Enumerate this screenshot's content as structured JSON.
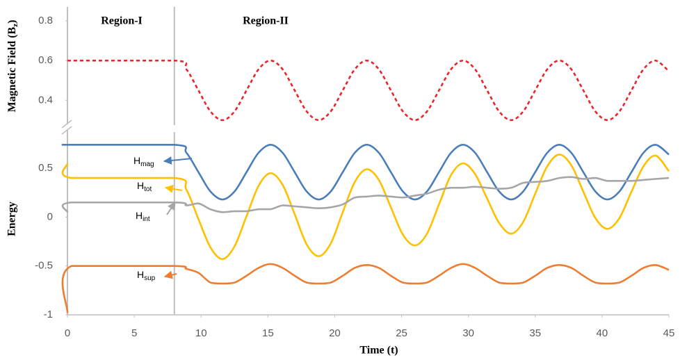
{
  "chart_data": [
    {
      "type": "line",
      "ylabel": [
        "Magnetic Field (B",
        "z",
        ")"
      ],
      "annotations": [
        "Region-I",
        "Region-II"
      ],
      "region_boundary": 8,
      "xlim": [
        0,
        45
      ],
      "ylim": [
        0.275,
        0.87
      ],
      "yticks": [
        0.4,
        0.6,
        0.8
      ],
      "x": [
        0,
        8,
        8.9,
        9.8,
        10.7,
        11.6,
        12.5,
        13.4,
        14.3,
        15.2,
        16.1,
        17,
        17.9,
        18.8,
        19.7,
        20.6,
        21.5,
        22.4,
        23.3,
        24.2,
        25.1,
        26,
        26.9,
        27.8,
        28.7,
        29.6,
        30.5,
        31.4,
        32.3,
        33.2,
        34.1,
        35,
        35.9,
        36.8,
        37.7,
        38.6,
        39.5,
        40.4,
        41.3,
        42.2,
        43.1,
        44,
        45
      ],
      "series": [
        {
          "color": "#e8262a",
          "dashed": true,
          "values": [
            0.6,
            0.6,
            0.556,
            0.45,
            0.344,
            0.3,
            0.344,
            0.45,
            0.556,
            0.6,
            0.556,
            0.45,
            0.344,
            0.3,
            0.344,
            0.45,
            0.556,
            0.6,
            0.556,
            0.45,
            0.344,
            0.3,
            0.344,
            0.45,
            0.556,
            0.6,
            0.556,
            0.45,
            0.344,
            0.3,
            0.344,
            0.45,
            0.556,
            0.6,
            0.556,
            0.45,
            0.344,
            0.3,
            0.344,
            0.45,
            0.556,
            0.6,
            0.546
          ]
        }
      ]
    },
    {
      "type": "line",
      "ylabel": "Energy",
      "xlabel": "Time (t)",
      "region_boundary": 8,
      "xlim": [
        0,
        45
      ],
      "ylim": [
        -1,
        0.87
      ],
      "xticks": [
        0,
        5,
        10,
        15,
        20,
        25,
        30,
        35,
        40,
        45
      ],
      "yticks": [
        0.5,
        0,
        -0.5,
        -1
      ],
      "x": [
        0,
        0.3,
        8,
        8.9,
        9.8,
        10.7,
        11.6,
        12.5,
        13.4,
        14.3,
        15.2,
        16.1,
        17,
        17.9,
        18.8,
        19.7,
        20.6,
        21.5,
        22.4,
        23.3,
        24.2,
        25.1,
        26,
        26.9,
        27.8,
        28.7,
        29.6,
        30.5,
        31.4,
        32.3,
        33.2,
        34.1,
        35,
        35.9,
        36.8,
        37.7,
        38.6,
        39.5,
        40.4,
        41.3,
        42.2,
        43.1,
        44,
        45
      ],
      "series": [
        {
          "name": "H",
          "name_sub": "mag",
          "color": "#4a7ebb",
          "values": [
            0.74,
            0.74,
            0.74,
            0.658,
            0.46,
            0.262,
            0.18,
            0.262,
            0.46,
            0.658,
            0.74,
            0.658,
            0.46,
            0.262,
            0.18,
            0.262,
            0.46,
            0.658,
            0.74,
            0.658,
            0.46,
            0.262,
            0.18,
            0.262,
            0.46,
            0.658,
            0.74,
            0.658,
            0.46,
            0.262,
            0.18,
            0.262,
            0.46,
            0.658,
            0.74,
            0.658,
            0.46,
            0.262,
            0.18,
            0.262,
            0.46,
            0.658,
            0.74,
            0.64
          ]
        },
        {
          "name": "H",
          "name_sub": "tot",
          "color": "#ffc000",
          "values": [
            0.55,
            0.4,
            0.4,
            0.28,
            -0.02,
            -0.31,
            -0.43,
            -0.3,
            0.01,
            0.32,
            0.45,
            0.33,
            0.03,
            -0.28,
            -0.4,
            -0.27,
            0.05,
            0.36,
            0.49,
            0.38,
            0.1,
            -0.18,
            -0.29,
            -0.17,
            0.13,
            0.43,
            0.55,
            0.44,
            0.19,
            -0.06,
            -0.17,
            -0.05,
            0.24,
            0.52,
            0.64,
            0.53,
            0.26,
            -0.01,
            -0.12,
            -0.01,
            0.26,
            0.52,
            0.63,
            0.47
          ]
        },
        {
          "name": "H",
          "name_sub": "int",
          "color": "#a6a6a6",
          "values": [
            0.05,
            0.15,
            0.15,
            0.12,
            0.14,
            0.08,
            0.05,
            0.06,
            0.06,
            0.08,
            0.08,
            0.12,
            0.11,
            0.1,
            0.09,
            0.1,
            0.13,
            0.2,
            0.21,
            0.22,
            0.21,
            0.2,
            0.22,
            0.24,
            0.28,
            0.3,
            0.3,
            0.31,
            0.3,
            0.29,
            0.3,
            0.35,
            0.36,
            0.37,
            0.4,
            0.41,
            0.39,
            0.4,
            0.37,
            0.37,
            0.37,
            0.38,
            0.39,
            0.4
          ]
        },
        {
          "name": "H",
          "name_sub": "sup",
          "color": "#ed7d31",
          "values": [
            -0.98,
            -0.5,
            -0.5,
            -0.53,
            -0.57,
            -0.67,
            -0.68,
            -0.67,
            -0.6,
            -0.52,
            -0.48,
            -0.52,
            -0.6,
            -0.67,
            -0.68,
            -0.67,
            -0.6,
            -0.52,
            -0.49,
            -0.52,
            -0.6,
            -0.67,
            -0.68,
            -0.67,
            -0.6,
            -0.52,
            -0.48,
            -0.52,
            -0.6,
            -0.67,
            -0.68,
            -0.67,
            -0.6,
            -0.52,
            -0.49,
            -0.52,
            -0.6,
            -0.67,
            -0.68,
            -0.67,
            -0.6,
            -0.52,
            -0.49,
            -0.54
          ]
        }
      ]
    }
  ]
}
